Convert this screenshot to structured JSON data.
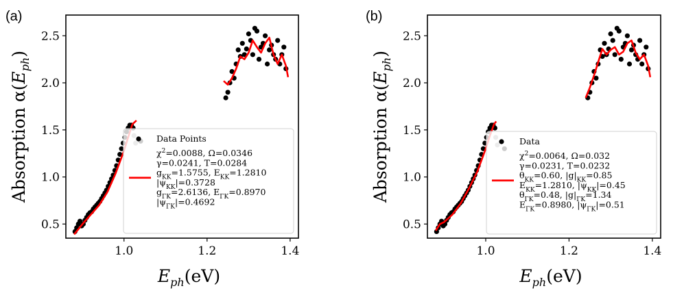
{
  "chart_data": [
    {
      "type": "scatter",
      "panel_label": "(a)",
      "xlabel": "E_ph(eV)",
      "ylabel": "Absorption α(E_ph)",
      "xlim": [
        0.86,
        1.42
      ],
      "ylim": [
        0.35,
        2.72
      ],
      "x_ticks": [
        "1.0",
        "1.2",
        "1.4"
      ],
      "y_ticks": [
        "0.5",
        "1.0",
        "1.5",
        "2.0",
        "2.5"
      ],
      "grid": false,
      "legend_position": "lower-right",
      "legend": {
        "data_label": "Data Points",
        "fit_lines": [
          "χ²=0.0088, Ω=0.0346",
          "γ=0.0241, T=0.0284",
          "g_KK=1.5755, E_KK=1.2810",
          "|ψ_KK|=0.3728",
          "g_ΓK=2.6136, E_ΓK=0.8970",
          "|ψ_ΓK|=0.4692"
        ]
      },
      "series": [
        {
          "kind": "points",
          "color": "#000000",
          "x": [
            0.882,
            0.886,
            0.89,
            0.894,
            0.898,
            0.902,
            0.906,
            0.91,
            0.914,
            0.918,
            0.922,
            0.926,
            0.93,
            0.934,
            0.938,
            0.942,
            0.946,
            0.95,
            0.954,
            0.958,
            0.962,
            0.966,
            0.97,
            0.974,
            0.978,
            0.982,
            0.986,
            0.99,
            0.994,
            0.998,
            1.002,
            1.006,
            1.01,
            1.014,
            1.018,
            1.022,
            1.04,
            1.245,
            1.25,
            1.255,
            1.26,
            1.265,
            1.27,
            1.275,
            1.28,
            1.285,
            1.29,
            1.295,
            1.3,
            1.305,
            1.31,
            1.315,
            1.32,
            1.325,
            1.33,
            1.335,
            1.34,
            1.345,
            1.35,
            1.355,
            1.36,
            1.365,
            1.37,
            1.375,
            1.38,
            1.385,
            1.39
          ],
          "y": [
            0.42,
            0.46,
            0.5,
            0.53,
            0.48,
            0.5,
            0.54,
            0.57,
            0.6,
            0.62,
            0.63,
            0.66,
            0.68,
            0.7,
            0.72,
            0.74,
            0.77,
            0.8,
            0.83,
            0.86,
            0.9,
            0.94,
            0.98,
            1.02,
            1.07,
            1.12,
            1.18,
            1.24,
            1.3,
            1.36,
            1.42,
            1.48,
            1.52,
            1.55,
            1.55,
            1.52,
            1.38,
            1.84,
            1.9,
            2.0,
            2.12,
            2.05,
            2.2,
            2.35,
            2.28,
            2.42,
            2.3,
            2.36,
            2.52,
            2.45,
            2.3,
            2.58,
            2.55,
            2.25,
            2.38,
            2.42,
            2.5,
            2.2,
            2.35,
            2.4,
            2.3,
            2.25,
            2.45,
            2.2,
            2.3,
            2.38,
            2.15
          ]
        },
        {
          "kind": "points",
          "color": "#999999",
          "x": [
            1.024,
            1.028
          ],
          "y": [
            1.44,
            1.36
          ]
        },
        {
          "kind": "line",
          "color": "#ff0000",
          "x": [
            0.88,
            0.9,
            0.92,
            0.94,
            0.96,
            0.98,
            1.0,
            1.01,
            1.02,
            1.03
          ],
          "y": [
            0.39,
            0.5,
            0.6,
            0.7,
            0.84,
            1.04,
            1.28,
            1.42,
            1.56,
            1.6
          ]
        },
        {
          "kind": "line",
          "color": "#ff0000",
          "x": [
            1.24,
            1.25,
            1.26,
            1.27,
            1.28,
            1.29,
            1.3,
            1.31,
            1.32,
            1.33,
            1.34,
            1.35,
            1.36,
            1.37,
            1.38,
            1.39,
            1.395
          ],
          "y": [
            2.02,
            1.98,
            2.05,
            2.15,
            2.28,
            2.25,
            2.32,
            2.45,
            2.38,
            2.32,
            2.42,
            2.48,
            2.3,
            2.2,
            2.3,
            2.18,
            2.06
          ]
        }
      ]
    },
    {
      "type": "scatter",
      "panel_label": "(b)",
      "xlabel": "E_ph(eV)",
      "ylabel": "Absorption α(E_ph)",
      "xlim": [
        0.86,
        1.42
      ],
      "ylim": [
        0.35,
        2.72
      ],
      "x_ticks": [
        "1.0",
        "1.2",
        "1.4"
      ],
      "y_ticks": [
        "0.5",
        "1.0",
        "1.5",
        "2.0",
        "2.5"
      ],
      "grid": false,
      "legend_position": "lower-right",
      "legend": {
        "data_label": "Data",
        "fit_lines": [
          "χ²=0.0064, Ω=0.032",
          "γ=0.0231, T=0.0232",
          "θ_KK=0.60, |g|_KK=0.85",
          "E_KK=1.2810, |ψ_KK|=0.45",
          "θ_ΓK=0.48, |g|_ΓK=1.34",
          "E_ΓK=0.8980, |ψ_ΓK|=0.51"
        ]
      },
      "series": [
        {
          "kind": "points",
          "color": "#000000",
          "x": [
            0.882,
            0.886,
            0.89,
            0.894,
            0.898,
            0.902,
            0.906,
            0.91,
            0.914,
            0.918,
            0.922,
            0.926,
            0.93,
            0.934,
            0.938,
            0.942,
            0.946,
            0.95,
            0.954,
            0.958,
            0.962,
            0.966,
            0.97,
            0.974,
            0.978,
            0.982,
            0.986,
            0.99,
            0.994,
            0.998,
            1.002,
            1.006,
            1.01,
            1.014,
            1.018,
            1.022,
            1.045,
            1.245,
            1.25,
            1.255,
            1.26,
            1.265,
            1.27,
            1.275,
            1.28,
            1.285,
            1.29,
            1.295,
            1.3,
            1.305,
            1.31,
            1.315,
            1.32,
            1.325,
            1.33,
            1.335,
            1.34,
            1.345,
            1.35,
            1.355,
            1.36,
            1.365,
            1.37,
            1.375,
            1.38,
            1.385,
            1.39
          ],
          "y": [
            0.42,
            0.46,
            0.5,
            0.53,
            0.48,
            0.5,
            0.54,
            0.57,
            0.6,
            0.62,
            0.63,
            0.66,
            0.68,
            0.7,
            0.72,
            0.74,
            0.77,
            0.8,
            0.83,
            0.86,
            0.9,
            0.94,
            0.98,
            1.02,
            1.07,
            1.12,
            1.18,
            1.24,
            1.3,
            1.36,
            1.42,
            1.48,
            1.52,
            1.55,
            1.55,
            1.52,
            1.3,
            1.84,
            1.9,
            2.0,
            2.12,
            2.05,
            2.2,
            2.35,
            2.28,
            2.42,
            2.3,
            2.36,
            2.52,
            2.45,
            2.3,
            2.58,
            2.55,
            2.25,
            2.38,
            2.42,
            2.5,
            2.2,
            2.35,
            2.4,
            2.3,
            2.25,
            2.45,
            2.2,
            2.3,
            2.38,
            2.15
          ]
        },
        {
          "kind": "points",
          "color": "#999999",
          "x": [
            1.024,
            1.028
          ],
          "y": [
            1.42,
            1.34
          ]
        },
        {
          "kind": "line",
          "color": "#ff0000",
          "x": [
            0.88,
            0.89,
            0.9,
            0.92,
            0.94,
            0.96,
            0.98,
            1.0,
            1.01,
            1.02,
            1.025
          ],
          "y": [
            0.43,
            0.5,
            0.52,
            0.6,
            0.72,
            0.88,
            1.06,
            1.3,
            1.44,
            1.56,
            1.59
          ]
        },
        {
          "kind": "line",
          "color": "#ff0000",
          "x": [
            1.24,
            1.25,
            1.26,
            1.27,
            1.28,
            1.29,
            1.3,
            1.31,
            1.32,
            1.33,
            1.34,
            1.35,
            1.36,
            1.37,
            1.38,
            1.39,
            1.395
          ],
          "y": [
            1.84,
            1.95,
            2.08,
            2.22,
            2.36,
            2.3,
            2.35,
            2.38,
            2.3,
            2.33,
            2.42,
            2.45,
            2.32,
            2.25,
            2.3,
            2.18,
            2.06
          ]
        }
      ]
    }
  ]
}
